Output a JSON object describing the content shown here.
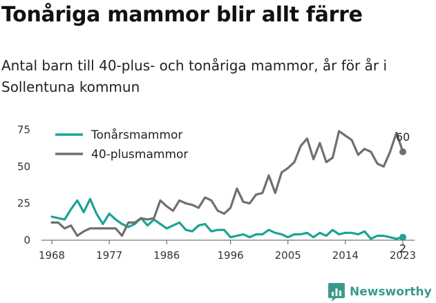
{
  "title": "Tonåriga mammor blir allt färre",
  "subtitle": "Antal barn till 40-plus- och tonåriga mammor, år för år i Sollentuna kommun",
  "brand": {
    "name": "Newsworthy",
    "color": "#3a9a8a"
  },
  "chart_data": {
    "type": "line",
    "title": "Tonåriga mammor blir allt färre",
    "subtitle": "Antal barn till 40-plus- och tonåriga mammor, år för år i Sollentuna kommun",
    "xlabel": "",
    "ylabel": "",
    "x": [
      1968,
      1969,
      1970,
      1971,
      1972,
      1973,
      1974,
      1975,
      1976,
      1977,
      1978,
      1979,
      1980,
      1981,
      1982,
      1983,
      1984,
      1985,
      1986,
      1987,
      1988,
      1989,
      1990,
      1991,
      1992,
      1993,
      1994,
      1995,
      1996,
      1997,
      1998,
      1999,
      2000,
      2001,
      2002,
      2003,
      2004,
      2005,
      2006,
      2007,
      2008,
      2009,
      2010,
      2011,
      2012,
      2013,
      2014,
      2015,
      2016,
      2017,
      2018,
      2019,
      2020,
      2021,
      2022,
      2023
    ],
    "xlim": [
      1968,
      2023
    ],
    "ylim": [
      0,
      75
    ],
    "x_ticks": [
      "1968",
      "1977",
      "1986",
      "1996",
      "2005",
      "2014",
      "2023"
    ],
    "y_ticks": [
      "0",
      "25",
      "50",
      "75"
    ],
    "grid": false,
    "legend": "top-left",
    "series": [
      {
        "name": "Tonårsmammor",
        "color": "#1aa396",
        "values": [
          16,
          15,
          14,
          21,
          27,
          19,
          28,
          18,
          11,
          18,
          14,
          11,
          9,
          11,
          15,
          10,
          14,
          11,
          8,
          10,
          12,
          7,
          6,
          10,
          11,
          6,
          7,
          7,
          2,
          3,
          4,
          2,
          4,
          4,
          7,
          5,
          4,
          2,
          4,
          4,
          5,
          2,
          5,
          3,
          7,
          4,
          5,
          5,
          4,
          6,
          1,
          3,
          3,
          2,
          1,
          2
        ],
        "end_label": "2"
      },
      {
        "name": "40-plusmammor",
        "color": "#6f6f6f",
        "values": [
          12,
          12,
          8,
          10,
          3,
          6,
          8,
          8,
          8,
          8,
          8,
          3,
          12,
          12,
          15,
          14,
          15,
          27,
          23,
          20,
          27,
          25,
          24,
          22,
          29,
          27,
          20,
          18,
          22,
          35,
          26,
          25,
          31,
          32,
          44,
          32,
          46,
          49,
          53,
          64,
          69,
          55,
          66,
          53,
          56,
          74,
          71,
          68,
          58,
          62,
          60,
          52,
          50,
          60,
          73,
          60
        ],
        "end_label": "60"
      }
    ]
  }
}
